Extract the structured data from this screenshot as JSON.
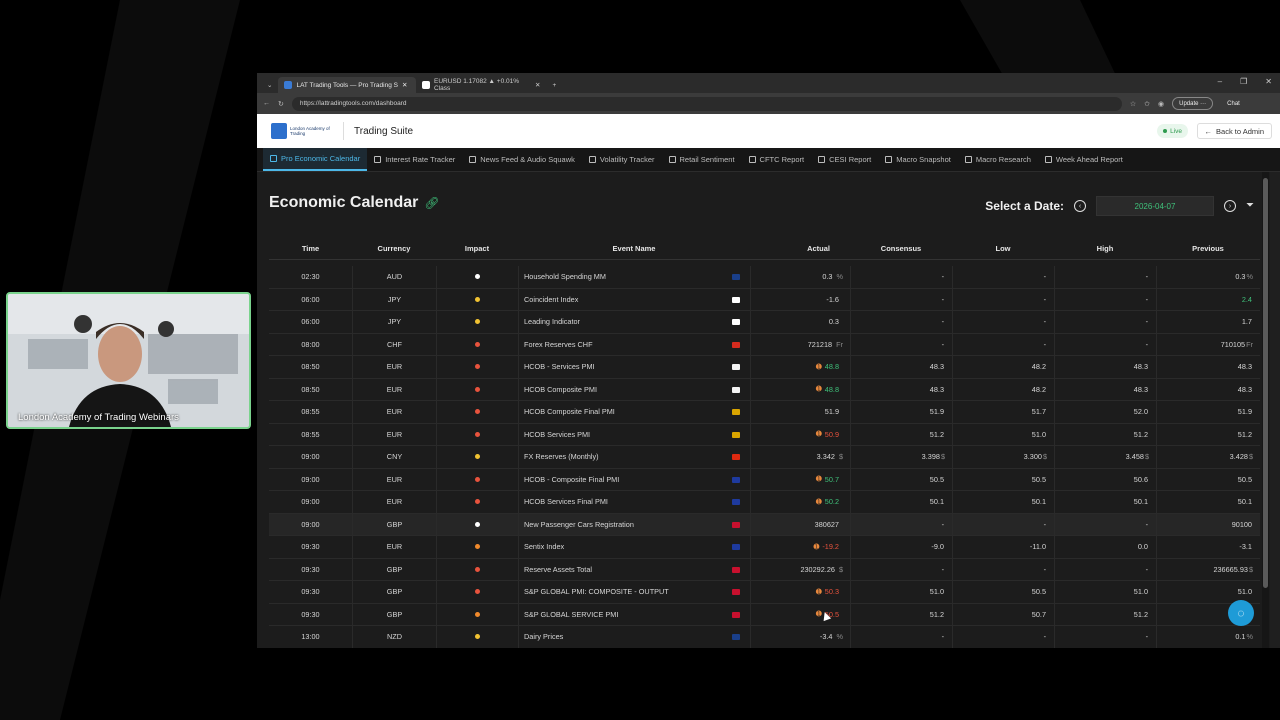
{
  "webcam": {
    "caption": "London Academy of Trading Webinars"
  },
  "browser": {
    "tabs": [
      {
        "title": "LAT Trading Tools — Pro Trading S",
        "active": true
      },
      {
        "title": "EURUSD 1.17082 ▲ +0.01% Class",
        "active": false
      }
    ],
    "url": "https://lattradingtools.com/dashboard",
    "update_label": "Update",
    "chat_label": "Chat"
  },
  "app": {
    "logo_text": "London Academy of Trading",
    "suite_title": "Trading Suite",
    "live_label": "Live",
    "back_label": "Back to Admin"
  },
  "nav": [
    {
      "label": "Pro Economic Calendar",
      "active": true
    },
    {
      "label": "Interest Rate Tracker",
      "active": false
    },
    {
      "label": "News Feed & Audio Squawk",
      "active": false
    },
    {
      "label": "Volatility Tracker",
      "active": false
    },
    {
      "label": "Retail Sentiment",
      "active": false
    },
    {
      "label": "CFTC Report",
      "active": false
    },
    {
      "label": "CESI Report",
      "active": false
    },
    {
      "label": "Macro Snapshot",
      "active": false
    },
    {
      "label": "Macro Research",
      "active": false
    },
    {
      "label": "Week Ahead Report",
      "active": false
    }
  ],
  "calendar": {
    "title": "Economic Calendar",
    "date_label": "Select a Date:",
    "date_value": "2026-04-07",
    "columns": [
      "Time",
      "Currency",
      "Impact",
      "Event Name",
      "Actual",
      "Consensus",
      "Low",
      "High",
      "Previous"
    ],
    "rows": [
      {
        "time": "02:30",
        "currency": "AUD",
        "impact": "low",
        "event": "Household Spending MM",
        "actual": "0.3",
        "actual_unit": "%",
        "actual_color": "normal",
        "actual_spark": false,
        "consensus": "-",
        "consensus_unit": "",
        "low": "-",
        "low_unit": "",
        "high": "-",
        "high_unit": "",
        "previous": "0.3",
        "previous_unit": "%",
        "previous_color": "normal",
        "flag": "#1a3f8a"
      },
      {
        "time": "06:00",
        "currency": "JPY",
        "impact": "medium",
        "event": "Coincident Index",
        "actual": "-1.6",
        "actual_unit": "",
        "actual_color": "normal",
        "actual_spark": false,
        "consensus": "-",
        "consensus_unit": "",
        "low": "-",
        "low_unit": "",
        "high": "-",
        "high_unit": "",
        "previous": "2.4",
        "previous_unit": "",
        "previous_color": "green",
        "flag": "#ffffff"
      },
      {
        "time": "06:00",
        "currency": "JPY",
        "impact": "medium",
        "event": "Leading Indicator",
        "actual": "0.3",
        "actual_unit": "",
        "actual_color": "normal",
        "actual_spark": false,
        "consensus": "-",
        "consensus_unit": "",
        "low": "-",
        "low_unit": "",
        "high": "-",
        "high_unit": "",
        "previous": "1.7",
        "previous_unit": "",
        "previous_color": "normal",
        "flag": "#ffffff"
      },
      {
        "time": "08:00",
        "currency": "CHF",
        "impact": "high",
        "event": "Forex Reserves CHF",
        "actual": "721218",
        "actual_unit": "Fr",
        "actual_color": "normal",
        "actual_spark": false,
        "consensus": "-",
        "consensus_unit": "",
        "low": "-",
        "low_unit": "",
        "high": "-",
        "high_unit": "",
        "previous": "710105",
        "previous_unit": "Fr",
        "previous_color": "normal",
        "flag": "#d52b1e"
      },
      {
        "time": "08:50",
        "currency": "EUR",
        "impact": "high",
        "event": "HCOB - Services PMI",
        "actual": "48.8",
        "actual_unit": "",
        "actual_color": "green",
        "actual_spark": true,
        "consensus": "48.3",
        "consensus_unit": "",
        "low": "48.2",
        "low_unit": "",
        "high": "48.3",
        "high_unit": "",
        "previous": "48.3",
        "previous_unit": "",
        "previous_color": "normal",
        "flag": "#f4f4f4"
      },
      {
        "time": "08:50",
        "currency": "EUR",
        "impact": "high",
        "event": "HCOB Composite PMI",
        "actual": "48.8",
        "actual_unit": "",
        "actual_color": "green",
        "actual_spark": true,
        "consensus": "48.3",
        "consensus_unit": "",
        "low": "48.2",
        "low_unit": "",
        "high": "48.3",
        "high_unit": "",
        "previous": "48.3",
        "previous_unit": "",
        "previous_color": "normal",
        "flag": "#f4f4f4"
      },
      {
        "time": "08:55",
        "currency": "EUR",
        "impact": "high",
        "event": "HCOB Composite Final PMI",
        "actual": "51.9",
        "actual_unit": "",
        "actual_color": "normal",
        "actual_spark": false,
        "consensus": "51.9",
        "consensus_unit": "",
        "low": "51.7",
        "low_unit": "",
        "high": "52.0",
        "high_unit": "",
        "previous": "51.9",
        "previous_unit": "",
        "previous_color": "normal",
        "flag": "#d9a400"
      },
      {
        "time": "08:55",
        "currency": "EUR",
        "impact": "high",
        "event": "HCOB Services PMI",
        "actual": "50.9",
        "actual_unit": "",
        "actual_color": "red",
        "actual_spark": true,
        "consensus": "51.2",
        "consensus_unit": "",
        "low": "51.0",
        "low_unit": "",
        "high": "51.2",
        "high_unit": "",
        "previous": "51.2",
        "previous_unit": "",
        "previous_color": "normal",
        "flag": "#d9a400"
      },
      {
        "time": "09:00",
        "currency": "CNY",
        "impact": "medium",
        "event": "FX Reserves (Monthly)",
        "actual": "3.342",
        "actual_unit": "$",
        "actual_color": "normal",
        "actual_spark": false,
        "consensus": "3.398",
        "consensus_unit": "$",
        "low": "3.300",
        "low_unit": "$",
        "high": "3.458",
        "high_unit": "$",
        "previous": "3.428",
        "previous_unit": "$",
        "previous_color": "normal",
        "flag": "#de2910"
      },
      {
        "time": "09:00",
        "currency": "EUR",
        "impact": "high",
        "event": "HCOB - Composite Final PMI",
        "actual": "50.7",
        "actual_unit": "",
        "actual_color": "green",
        "actual_spark": true,
        "consensus": "50.5",
        "consensus_unit": "",
        "low": "50.5",
        "low_unit": "",
        "high": "50.6",
        "high_unit": "",
        "previous": "50.5",
        "previous_unit": "",
        "previous_color": "normal",
        "flag": "#1e3a9e"
      },
      {
        "time": "09:00",
        "currency": "EUR",
        "impact": "high",
        "event": "HCOB Services Final PMI",
        "actual": "50.2",
        "actual_unit": "",
        "actual_color": "green",
        "actual_spark": true,
        "consensus": "50.1",
        "consensus_unit": "",
        "low": "50.1",
        "low_unit": "",
        "high": "50.1",
        "high_unit": "",
        "previous": "50.1",
        "previous_unit": "",
        "previous_color": "normal",
        "flag": "#1e3a9e"
      },
      {
        "time": "09:00",
        "currency": "GBP",
        "impact": "low",
        "event": "New Passenger Cars Registration",
        "actual": "380627",
        "actual_unit": "",
        "actual_color": "normal",
        "actual_spark": false,
        "consensus": "-",
        "consensus_unit": "",
        "low": "-",
        "low_unit": "",
        "high": "-",
        "high_unit": "",
        "previous": "90100",
        "previous_unit": "",
        "previous_color": "normal",
        "flag": "#c8102e",
        "highlight": true
      },
      {
        "time": "09:30",
        "currency": "EUR",
        "impact": "high_orange",
        "event": "Sentix Index",
        "actual": "-19.2",
        "actual_unit": "",
        "actual_color": "red",
        "actual_spark": true,
        "consensus": "-9.0",
        "consensus_unit": "",
        "low": "-11.0",
        "low_unit": "",
        "high": "0.0",
        "high_unit": "",
        "previous": "-3.1",
        "previous_unit": "",
        "previous_color": "normal",
        "flag": "#1e3a9e"
      },
      {
        "time": "09:30",
        "currency": "GBP",
        "impact": "high",
        "event": "Reserve Assets Total",
        "actual": "230292.26",
        "actual_unit": "$",
        "actual_color": "normal",
        "actual_spark": false,
        "consensus": "-",
        "consensus_unit": "",
        "low": "-",
        "low_unit": "",
        "high": "-",
        "high_unit": "",
        "previous": "236665.93",
        "previous_unit": "$",
        "previous_color": "normal",
        "flag": "#c8102e"
      },
      {
        "time": "09:30",
        "currency": "GBP",
        "impact": "high",
        "event": "S&P GLOBAL PMI: COMPOSITE - OUTPUT",
        "actual": "50.3",
        "actual_unit": "",
        "actual_color": "red",
        "actual_spark": true,
        "consensus": "51.0",
        "consensus_unit": "",
        "low": "50.5",
        "low_unit": "",
        "high": "51.0",
        "high_unit": "",
        "previous": "51.0",
        "previous_unit": "",
        "previous_color": "normal",
        "flag": "#c8102e"
      },
      {
        "time": "09:30",
        "currency": "GBP",
        "impact": "high_orange",
        "event": "S&P GLOBAL SERVICE PMI",
        "actual": "50.5",
        "actual_unit": "",
        "actual_color": "red",
        "actual_spark": true,
        "consensus": "51.2",
        "consensus_unit": "",
        "low": "50.7",
        "low_unit": "",
        "high": "51.2",
        "high_unit": "",
        "previous": "5",
        "previous_unit": "",
        "previous_color": "normal",
        "flag": "#c8102e"
      },
      {
        "time": "13:00",
        "currency": "NZD",
        "impact": "medium",
        "event": "Dairy Prices",
        "actual": "-3.4",
        "actual_unit": "%",
        "actual_color": "normal",
        "actual_spark": false,
        "consensus": "-",
        "consensus_unit": "",
        "low": "-",
        "low_unit": "",
        "high": "-",
        "high_unit": "",
        "previous": "0.1",
        "previous_unit": "%",
        "previous_color": "normal",
        "flag": "#1a3f8a"
      }
    ]
  },
  "colors": {
    "impact_low": "#ffffff",
    "impact_medium": "#f1c232",
    "impact_high": "#e8533d",
    "impact_high_orange": "#f08a2c",
    "accent": "#4db8e8",
    "positive": "#3fc07a",
    "negative": "#e8533d"
  }
}
